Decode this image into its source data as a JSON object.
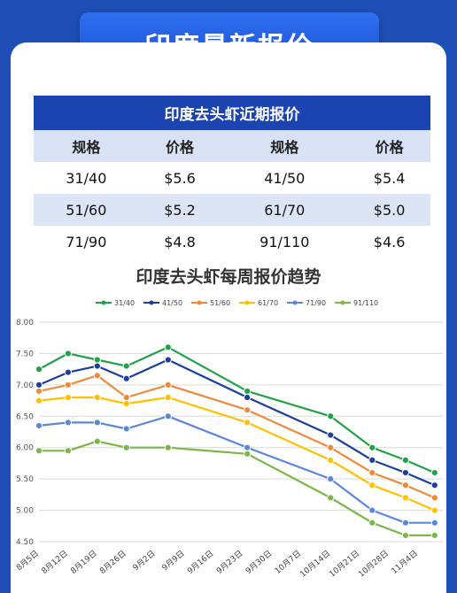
{
  "header": {
    "title": "印度最新报价"
  },
  "table": {
    "title": "印度去头虾近期报价",
    "headers": [
      "规格",
      "价格",
      "规格",
      "价格"
    ],
    "rows": [
      [
        "31/40",
        "$5.6",
        "41/50",
        "$5.4"
      ],
      [
        "51/60",
        "$5.2",
        "61/70",
        "$5.0"
      ],
      [
        "71/90",
        "$4.8",
        "91/110",
        "$4.6"
      ]
    ]
  },
  "chart_data": {
    "type": "line",
    "title": "印度去头虾每周报价趋势",
    "xlabel": "",
    "ylabel": "",
    "ylim": [
      4.5,
      8.0
    ],
    "yticks": [
      "8.00",
      "7.50",
      "7.00",
      "6.50",
      "6.00",
      "5.50",
      "5.00",
      "4.50"
    ],
    "categories": [
      "8月5日",
      "8月12日",
      "8月19日",
      "8月26日",
      "9月2日",
      "9月9日",
      "9月16日",
      "9月23日",
      "9月30日",
      "10月7日",
      "10月14日",
      "10月21日",
      "10月28日",
      "11月4日"
    ],
    "grid": true,
    "legend_position": "top",
    "series": [
      {
        "name": "31/40",
        "color": "#21a247",
        "x": [
          "8月5日",
          "8月12日",
          "8月19日",
          "8月26日",
          "9月5日",
          "9月24日",
          "10月14日",
          "10月24日",
          "11月1日",
          "11月8日"
        ],
        "values": [
          7.25,
          7.5,
          7.4,
          7.3,
          7.6,
          6.9,
          6.5,
          6.0,
          5.8,
          5.6
        ]
      },
      {
        "name": "41/50",
        "color": "#1c3e9e",
        "x": [
          "8月5日",
          "8月12日",
          "8月19日",
          "8月26日",
          "9月5日",
          "9月24日",
          "10月14日",
          "10月24日",
          "11月1日",
          "11月8日"
        ],
        "values": [
          7.0,
          7.2,
          7.3,
          7.1,
          7.4,
          6.8,
          6.2,
          5.8,
          5.6,
          5.4
        ]
      },
      {
        "name": "51/60",
        "color": "#ef8a3c",
        "x": [
          "8月5日",
          "8月12日",
          "8月19日",
          "8月26日",
          "9月5日",
          "9月24日",
          "10月14日",
          "10月24日",
          "11月1日",
          "11月8日"
        ],
        "values": [
          6.9,
          7.0,
          7.15,
          6.8,
          7.0,
          6.6,
          6.0,
          5.6,
          5.4,
          5.2
        ]
      },
      {
        "name": "61/70",
        "color": "#ffc000",
        "x": [
          "8月5日",
          "8月12日",
          "8月19日",
          "8月26日",
          "9月5日",
          "9月24日",
          "10月14日",
          "10月24日",
          "11月1日",
          "11月8日"
        ],
        "values": [
          6.75,
          6.8,
          6.8,
          6.7,
          6.8,
          6.4,
          5.8,
          5.4,
          5.2,
          5.0
        ]
      },
      {
        "name": "71/90",
        "color": "#5b87d8",
        "x": [
          "8月5日",
          "8月12日",
          "8月19日",
          "8月26日",
          "9月5日",
          "9月24日",
          "10月14日",
          "10月24日",
          "11月1日",
          "11月8日"
        ],
        "values": [
          6.35,
          6.4,
          6.4,
          6.3,
          6.5,
          6.0,
          5.5,
          5.0,
          4.8,
          4.8
        ]
      },
      {
        "name": "91/110",
        "color": "#7ab648",
        "x": [
          "8月5日",
          "8月12日",
          "8月19日",
          "8月26日",
          "9月5日",
          "9月24日",
          "10月14日",
          "10月24日",
          "11月1日",
          "11月8日"
        ],
        "values": [
          5.95,
          5.95,
          6.1,
          6.0,
          6.0,
          5.9,
          5.2,
          4.8,
          4.6,
          4.6
        ]
      }
    ]
  }
}
